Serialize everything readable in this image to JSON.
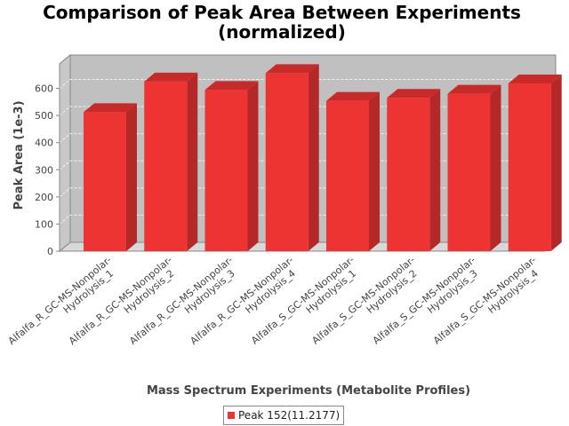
{
  "colors": {
    "bar_front": "#ee3333",
    "bar_side": "#b52828",
    "bar_top": "#c82a2a",
    "plot_back": "#c0c0c0",
    "plot_floor": "#d8d8d8"
  },
  "chart_data": {
    "type": "bar",
    "title": "Comparison of Peak Area Between Experiments",
    "subtitle": "(normalized)",
    "xlabel": "Mass Spectrum Experiments (Metabolite Profiles)",
    "ylabel": "Peak Area (1e-3)",
    "ylim": [
      0,
      690
    ],
    "yticks": [
      0,
      100,
      200,
      300,
      400,
      500,
      600
    ],
    "grid": true,
    "legend_position": "bottom",
    "categories": [
      [
        "Alfalfa_R_GC-MS-Nonpolar-",
        "Hydrolysis_1"
      ],
      [
        "Alfalfa_R_GC-MS-Nonpolar-",
        "Hydrolysis_2"
      ],
      [
        "Alfalfa_R_GC-MS-Nonpolar-",
        "Hydrolysis_3"
      ],
      [
        "Alfalfa_R_GC-MS-Nonpolar-",
        "Hydrolysis_4"
      ],
      [
        "Alfalfa_S_GC-MS-Nonpolar-",
        "Hydrolysis_1"
      ],
      [
        "Alfalfa_S_GC-MS-Nonpolar-",
        "Hydrolysis_2"
      ],
      [
        "Alfalfa_S_GC-MS-Nonpolar-",
        "Hydrolysis_3"
      ],
      [
        "Alfalfa_S_GC-MS-Nonpolar-",
        "Hydrolysis_4"
      ]
    ],
    "series": [
      {
        "name": "Peak 152(11.2177)",
        "values": [
          512,
          625,
          594,
          656,
          554,
          565,
          580,
          618
        ]
      }
    ]
  }
}
